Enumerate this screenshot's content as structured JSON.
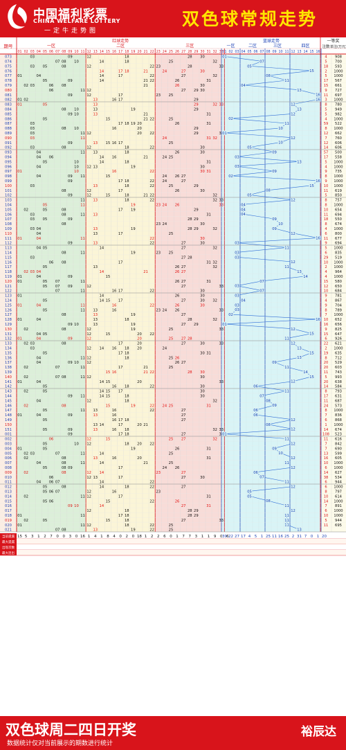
{
  "brand": {
    "cn": "中国福利彩票",
    "en": "CHINA WELFARE LOTTERY",
    "sub": "一定牛走势图"
  },
  "title": "双色球常规走势",
  "headers": {
    "period": "期号",
    "red_group": "红球走势",
    "red_zones": [
      "一区",
      "二区",
      "三区"
    ],
    "blue_group": "蓝球走势",
    "blue_zones": [
      "一区",
      "二区",
      "三区",
      "四区"
    ],
    "prize_group": "一等奖",
    "prize_cols": [
      "注数",
      "单注(万元)"
    ]
  },
  "stats": {
    "labels": [
      "当前遗漏",
      "最大遗漏",
      "出现次数",
      "最大连出"
    ],
    "red_missing": [
      "15",
      "5",
      "3",
      "1",
      "2",
      "7",
      "0",
      "0",
      "3",
      "0",
      "16",
      "1",
      "4",
      "1",
      "8",
      "4",
      "0",
      "2",
      "0",
      "18",
      "1",
      "2",
      "2",
      "6",
      "0",
      "1",
      "7",
      "7",
      "3",
      "1",
      "1",
      "9",
      "0",
      "6"
    ],
    "blue_missing": [
      "39",
      "22",
      "27",
      "17",
      "4",
      "5",
      "1",
      "25",
      "11",
      "16",
      "25",
      "2",
      "31",
      "7",
      "0",
      "1",
      "20"
    ]
  },
  "footer": {
    "title": "双色球周二四日开奖",
    "note": "数据统计仅对当前展示的期数进行统计",
    "brand": "裕辰达"
  },
  "draws": [
    {
      "p": "073",
      "r": [
        3,
        9,
        12,
        18,
        28,
        30
      ],
      "b": 1,
      "n": "4",
      "m": "908"
    },
    {
      "p": "074",
      "r": [
        7,
        8,
        10,
        14,
        18,
        25,
        32
      ],
      "b": 7,
      "n": "5",
      "m": "700"
    },
    {
      "p": "075",
      "r": [
        3,
        5,
        8,
        12,
        22,
        23,
        28,
        33
      ],
      "b": 5,
      "n": "18",
      "m": "593"
    },
    {
      "p": "076",
      "r": [
        14,
        17,
        18,
        21,
        24,
        27,
        30
      ],
      "b": 15,
      "n": "2",
      "m": "1000"
    },
    {
      "p": "077",
      "r": [
        1,
        4,
        14,
        17,
        22,
        27,
        32
      ],
      "b": 8,
      "n": "5",
      "m": "1000"
    },
    {
      "p": "078",
      "r": [
        5,
        9,
        14,
        21,
        22,
        26,
        31
      ],
      "b": 11,
      "n": "17",
      "m": "567"
    },
    {
      "p": "079",
      "r": [
        2,
        3,
        6,
        8,
        21,
        26,
        30
      ],
      "b": 4,
      "n": "15",
      "m": "661"
    },
    {
      "p": "080",
      "r": [
        6,
        11,
        12,
        27,
        29,
        30
      ],
      "b": 13,
      "n": "9",
      "m": "727"
    },
    {
      "p": "081",
      "r": [
        9,
        12,
        17,
        23,
        25
      ],
      "b": 16,
      "n": "11",
      "m": "697"
    },
    {
      "p": "082",
      "r": [
        1,
        2,
        13,
        16,
        17,
        29
      ],
      "b": 16,
      "n": "3",
      "m": "1000"
    },
    {
      "p": "083",
      "r": [
        1,
        5,
        13,
        29,
        32,
        33
      ],
      "b": 12,
      "n": "8",
      "m": "780"
    },
    {
      "p": "084",
      "r": [
        8,
        10,
        13,
        19,
        29
      ],
      "b": 13,
      "n": "5",
      "m": "949"
    },
    {
      "p": "085",
      "r": [
        9,
        10,
        13,
        21,
        31
      ],
      "b": 12,
      "n": "5",
      "m": "982"
    },
    {
      "p": "086",
      "r": [
        5,
        15,
        21,
        22,
        25
      ],
      "b": 2,
      "n": "4",
      "m": "1000"
    },
    {
      "p": "087",
      "r": [
        3,
        17,
        18,
        19,
        20,
        26,
        31
      ],
      "b": 11,
      "n": "59",
      "m": "522"
    },
    {
      "p": "088",
      "r": [
        3,
        8,
        10,
        16,
        20,
        29
      ],
      "b": 10,
      "n": "8",
      "m": "1000"
    },
    {
      "p": "089",
      "r": [
        3,
        11,
        12,
        20,
        22,
        29,
        33
      ],
      "b": 1,
      "n": "12",
      "m": "662"
    },
    {
      "p": "090",
      "r": [
        3,
        11,
        24,
        31,
        32
      ],
      "b": 12,
      "n": "7",
      "m": "760"
    },
    {
      "p": "091",
      "r": [
        9,
        13,
        15,
        16,
        17,
        25
      ],
      "b": 10,
      "n": "12",
      "m": "606"
    },
    {
      "p": "092",
      "r": [
        3,
        8,
        12,
        18,
        22,
        30
      ],
      "b": 5,
      "n": "14",
      "m": "606"
    },
    {
      "p": "093",
      "r": [
        4,
        11,
        13,
        18,
        26,
        30
      ],
      "b": 9,
      "n": "57",
      "m": "500"
    },
    {
      "p": "094",
      "r": [
        4,
        6,
        14,
        16,
        21,
        24,
        25
      ],
      "b": 3,
      "n": "17",
      "m": "558"
    },
    {
      "p": "095",
      "r": [
        5,
        10,
        14,
        18,
        31
      ],
      "b": 13,
      "n": "5",
      "m": "1000"
    },
    {
      "p": "096",
      "r": [
        4,
        10,
        12,
        13,
        19,
        30
      ],
      "b": 3,
      "n": "4",
      "m": "1000"
    },
    {
      "p": "097",
      "r": [
        1,
        10,
        16,
        22,
        30,
        31
      ],
      "b": 9,
      "n": "9",
      "m": "735"
    },
    {
      "p": "098",
      "r": [
        4,
        9,
        11,
        15,
        24,
        26,
        27
      ],
      "b": 2,
      "n": "8",
      "m": "1000"
    },
    {
      "p": "099",
      "r": [
        9,
        17,
        18,
        22,
        24,
        27
      ],
      "b": 16,
      "n": "9",
      "m": "1000"
    },
    {
      "p": "100",
      "r": [
        3,
        13,
        18,
        22,
        25,
        29
      ],
      "b": 15,
      "n": "10",
      "m": "1000"
    },
    {
      "p": "101",
      "r": [
        8,
        12,
        17,
        26,
        30
      ],
      "b": 8,
      "n": "11",
      "m": "619"
    },
    {
      "p": "102",
      "r": [
        9,
        12,
        15,
        18,
        21,
        22,
        32
      ],
      "b": 5,
      "n": "5",
      "m": "850"
    },
    {
      "p": "103",
      "r": [
        11,
        13,
        18,
        22,
        32,
        33
      ],
      "b": 12,
      "n": "8",
      "m": "757"
    },
    {
      "p": "104",
      "r": [
        5,
        11,
        19,
        23,
        24,
        26,
        33
      ],
      "b": 4,
      "n": "8",
      "m": "1000"
    },
    {
      "p": "105",
      "r": [
        2,
        5,
        8,
        17,
        19,
        29
      ],
      "b": 4,
      "n": "10",
      "m": "654"
    },
    {
      "p": "106",
      "r": [
        3,
        8,
        11,
        13,
        31
      ],
      "b": 4,
      "n": "11",
      "m": "694"
    },
    {
      "p": "107",
      "r": [
        3,
        5,
        9,
        28,
        29
      ],
      "b": 9,
      "n": "18",
      "m": "550"
    },
    {
      "p": "108",
      "r": [
        8,
        23,
        24,
        30
      ],
      "b": 10,
      "n": "8",
      "m": "674"
    },
    {
      "p": "109",
      "r": [
        3,
        4,
        13,
        19,
        28,
        29,
        32
      ],
      "b": 9,
      "n": "4",
      "m": "1000"
    },
    {
      "p": "110",
      "r": [
        4,
        13,
        17,
        25
      ],
      "b": 12,
      "n": "6",
      "m": "800"
    },
    {
      "p": "111",
      "r": [
        1,
        4,
        11,
        22,
        30
      ],
      "b": 16,
      "n": "11",
      "m": "677"
    },
    {
      "p": "112",
      "r": [
        9,
        13,
        22,
        27,
        30
      ],
      "b": 3,
      "n": "9",
      "m": "694"
    },
    {
      "p": "113",
      "r": [
        4,
        5,
        14,
        27,
        32
      ],
      "b": 11,
      "n": "5",
      "m": "1000"
    },
    {
      "p": "114",
      "r": [
        8,
        11,
        19,
        23,
        25
      ],
      "b": 3,
      "n": "6",
      "m": "835"
    },
    {
      "p": "115",
      "r": [
        3,
        27,
        28
      ],
      "b": 3,
      "n": "29",
      "m": "519"
    },
    {
      "p": "116",
      "r": [
        6,
        8,
        17,
        31,
        32
      ],
      "b": 12,
      "n": "10",
      "m": "1000"
    },
    {
      "p": "117",
      "r": [
        5,
        13,
        26,
        27,
        32
      ],
      "b": 11,
      "n": "2",
      "m": "1000"
    },
    {
      "p": "118",
      "r": [
        2,
        3,
        4,
        14,
        21,
        26,
        27
      ],
      "b": 13,
      "n": "4",
      "m": "964"
    },
    {
      "p": "119",
      "r": [
        1,
        4,
        9,
        15
      ],
      "b": 14,
      "n": "4",
      "m": "1000"
    },
    {
      "p": "120",
      "r": [
        1,
        5,
        7,
        11,
        26,
        27,
        31
      ],
      "b": 7,
      "n": "15",
      "m": "580"
    },
    {
      "p": "121",
      "r": [
        5,
        7,
        9,
        12,
        27,
        33
      ],
      "b": 3,
      "n": "12",
      "m": "650"
    },
    {
      "p": "122",
      "r": [
        7,
        11,
        16,
        17,
        22,
        30
      ],
      "b": 7,
      "n": "10",
      "m": "684"
    },
    {
      "p": "123",
      "r": [
        1,
        14,
        26,
        30
      ],
      "b": 3,
      "n": "9",
      "m": "781"
    },
    {
      "p": "124",
      "r": [
        5,
        14,
        15,
        17,
        27,
        30,
        32
      ],
      "b": 4,
      "n": "4",
      "m": "867"
    },
    {
      "p": "125",
      "r": [
        1,
        4,
        11,
        16,
        22,
        26,
        30
      ],
      "b": 3,
      "n": "9",
      "m": "704"
    },
    {
      "p": "126",
      "r": [
        5,
        11,
        13,
        16,
        23,
        24,
        26,
        33
      ],
      "b": 3,
      "n": "8",
      "m": "789"
    },
    {
      "p": "127",
      "r": [
        8,
        13,
        19,
        27
      ],
      "b": 2,
      "n": "7",
      "m": "1000"
    },
    {
      "p": "128",
      "r": [
        1,
        4,
        13,
        18,
        28,
        32
      ],
      "b": 16,
      "n": "10",
      "m": "652"
    },
    {
      "p": "129",
      "r": [
        9,
        10,
        13,
        19,
        27,
        29
      ],
      "b": 1,
      "n": "16",
      "m": "656"
    },
    {
      "p": "130",
      "r": [
        2,
        8,
        12,
        19,
        25,
        33
      ],
      "b": 12,
      "n": "9",
      "m": "825"
    },
    {
      "p": "131",
      "r": [
        4,
        5,
        12,
        15,
        20,
        22
      ],
      "b": 15,
      "n": "15",
      "m": "647"
    },
    {
      "p": "132",
      "r": [
        1,
        4,
        9,
        12,
        20,
        25,
        27,
        28
      ],
      "b": 11,
      "n": "6",
      "m": "926"
    },
    {
      "p": "133",
      "r": [
        2,
        3,
        8,
        17,
        20,
        27,
        30,
        33
      ],
      "b": 12,
      "n": "22",
      "m": "621"
    },
    {
      "p": "134",
      "r": [
        3,
        12,
        14,
        16,
        18,
        20,
        24
      ],
      "b": 13,
      "n": "2",
      "m": "1000"
    },
    {
      "p": "135",
      "r": [
        5,
        17,
        18,
        30,
        31
      ],
      "b": 15,
      "n": "19",
      "m": "635"
    },
    {
      "p": "136",
      "r": [
        4,
        11,
        12,
        18,
        25,
        26
      ],
      "b": 13,
      "n": "8",
      "m": "712"
    },
    {
      "p": "137",
      "r": [
        4,
        9,
        10,
        12,
        26,
        27
      ],
      "b": 9,
      "n": "20",
      "m": "529"
    },
    {
      "p": "138",
      "r": [
        2,
        7,
        11,
        17,
        21,
        25
      ],
      "b": 11,
      "n": "20",
      "m": "603"
    },
    {
      "p": "139",
      "r": [
        15,
        16,
        21,
        22,
        28,
        30
      ],
      "b": 14,
      "n": "11",
      "m": "743"
    },
    {
      "p": "140",
      "r": [
        2,
        7,
        8,
        11,
        12,
        30
      ],
      "b": 15,
      "n": "5",
      "m": "993"
    },
    {
      "p": "141",
      "r": [
        1,
        4,
        14,
        15,
        20,
        33
      ],
      "b": 12,
      "n": "20",
      "m": "638"
    },
    {
      "p": "142",
      "r": [
        5,
        16,
        18,
        22,
        30
      ],
      "b": 6,
      "n": "14",
      "m": "584"
    },
    {
      "p": "143",
      "r": [
        2,
        5,
        14,
        15,
        17,
        30
      ],
      "b": 11,
      "n": "8",
      "m": "793"
    },
    {
      "p": "144",
      "r": [
        9,
        11,
        14,
        15,
        18,
        30
      ],
      "b": 7,
      "n": "17",
      "m": "631"
    },
    {
      "p": "145",
      "r": [
        4,
        12,
        18,
        32
      ],
      "b": 8,
      "n": "11",
      "m": "687"
    },
    {
      "p": "146",
      "r": [
        2,
        8,
        15,
        19,
        22,
        24,
        25,
        31
      ],
      "b": 9,
      "n": "24",
      "m": "573"
    },
    {
      "p": "147",
      "r": [
        5,
        11,
        13,
        16,
        22,
        27
      ],
      "b": 6,
      "n": "8",
      "m": "1000"
    },
    {
      "p": "148",
      "r": [
        1,
        4,
        9,
        13,
        16,
        27
      ],
      "b": 6,
      "n": "7",
      "m": "836"
    },
    {
      "p": "149",
      "r": [
        5,
        16,
        17,
        18,
        27
      ],
      "b": 12,
      "n": "6",
      "m": "868"
    },
    {
      "p": "150",
      "r": [
        13,
        14,
        17,
        20,
        21
      ],
      "b": 8,
      "n": "1",
      "m": "1000"
    },
    {
      "p": "151",
      "r": [
        5,
        9,
        13,
        16,
        18,
        32,
        33
      ],
      "b": 12,
      "n": "14",
      "m": "674"
    },
    {
      "p": "001",
      "r": [
        9,
        17,
        18,
        27,
        33
      ],
      "b": 1,
      "n": "108",
      "m": "523"
    },
    {
      "p": "002",
      "r": [
        6,
        12,
        15,
        25,
        27,
        32
      ],
      "b": 11,
      "n": "11",
      "m": "616"
    },
    {
      "p": "003",
      "r": [
        5,
        10,
        12,
        18,
        20,
        22
      ],
      "b": 12,
      "n": "7",
      "m": "842"
    },
    {
      "p": "004",
      "r": [
        1,
        5,
        19,
        26,
        31
      ],
      "b": 9,
      "n": "7",
      "m": "690"
    },
    {
      "p": "005",
      "r": [
        2,
        3,
        7,
        11,
        14,
        25
      ],
      "b": 10,
      "n": "13",
      "m": "599"
    },
    {
      "p": "006",
      "r": [
        2,
        8,
        13,
        16,
        20,
        31
      ],
      "b": 12,
      "n": "16",
      "m": "605"
    },
    {
      "p": "007",
      "r": [
        4,
        8,
        11,
        14,
        21,
        25
      ],
      "b": 11,
      "n": "10",
      "m": "1000"
    },
    {
      "p": "008",
      "r": [
        5,
        8,
        9,
        17,
        24,
        26
      ],
      "b": 12,
      "n": "6",
      "m": "1000"
    },
    {
      "p": "009",
      "r": [
        2,
        8,
        12,
        14,
        23,
        27
      ],
      "b": 6,
      "n": "14",
      "m": "627"
    },
    {
      "p": "010",
      "r": [
        6,
        12,
        13,
        17,
        27,
        30
      ],
      "b": 7,
      "n": "38",
      "m": "534"
    },
    {
      "p": "011",
      "r": [
        4,
        6,
        7,
        14,
        22
      ],
      "b": 11,
      "n": "6",
      "m": "944"
    },
    {
      "p": "012",
      "r": [
        5,
        8,
        14,
        18,
        22,
        27
      ],
      "b": 12,
      "n": "6",
      "m": "1000"
    },
    {
      "p": "013",
      "r": [
        5,
        6,
        7,
        12,
        16,
        23
      ],
      "b": 5,
      "n": "8",
      "m": "797"
    },
    {
      "p": "014",
      "r": [
        2,
        11,
        12,
        17,
        31
      ],
      "b": 5,
      "n": "10",
      "m": "614"
    },
    {
      "p": "015",
      "r": [
        5,
        6,
        15,
        22,
        26
      ],
      "b": 8,
      "n": "14",
      "m": "1000"
    },
    {
      "p": "016",
      "r": [
        9,
        10,
        14,
        27,
        31
      ],
      "b": 11,
      "n": "7",
      "m": "891"
    },
    {
      "p": "017",
      "r": [
        12,
        18,
        28,
        29
      ],
      "b": 12,
      "n": "6",
      "m": "1000"
    },
    {
      "p": "018",
      "r": [
        1,
        11,
        17,
        18,
        28,
        29
      ],
      "b": 11,
      "n": "10",
      "m": "1000"
    },
    {
      "p": "019",
      "r": [
        2,
        5,
        15,
        18,
        27,
        33
      ],
      "b": 11,
      "n": "5",
      "m": "944"
    },
    {
      "p": "020",
      "r": [
        1,
        11,
        12,
        18,
        22,
        25
      ],
      "b": 11,
      "n": "11",
      "m": "695"
    },
    {
      "p": "021",
      "r": [
        7,
        8,
        13,
        19,
        22,
        25
      ],
      "b": 13,
      "n": "",
      "m": ""
    }
  ]
}
